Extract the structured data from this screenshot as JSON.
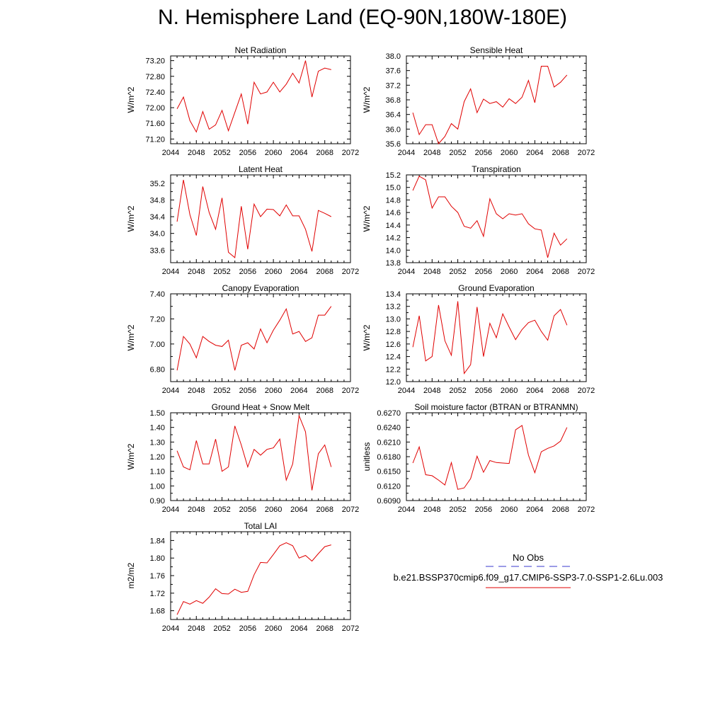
{
  "title": "N. Hemisphere Land (EQ-90N,180W-180E)",
  "legend": {
    "obs_label": "No Obs",
    "obs_color": "#3a3acc",
    "run_label": "b.e21.BSSP370cmip6.f09_g17.CMIP6-SSP3-7.0-SSP1-2.6Lu.003",
    "run_color": "#e00000"
  },
  "chart_data": [
    {
      "type": "line",
      "title": "Net Radiation",
      "ylabel": "W/m^2",
      "xlim": [
        2044,
        2072
      ],
      "xticks": [
        "2044",
        "2048",
        "2052",
        "2056",
        "2060",
        "2064",
        "2068",
        "2072"
      ],
      "ylim": [
        71.08,
        73.32
      ],
      "yticks": [
        "71.20",
        "71.60",
        "72.00",
        "72.40",
        "72.80",
        "73.20"
      ],
      "series": [
        {
          "color": "#e00000",
          "x": [
            2045,
            2046,
            2047,
            2048,
            2049,
            2050,
            2051,
            2052,
            2053,
            2054,
            2055,
            2056,
            2057,
            2058,
            2059,
            2060,
            2061,
            2062,
            2063,
            2064,
            2065,
            2066,
            2067,
            2068,
            2069
          ],
          "values": [
            71.97,
            72.27,
            71.67,
            71.38,
            71.9,
            71.45,
            71.56,
            71.93,
            71.41,
            71.88,
            72.35,
            71.58,
            72.65,
            72.35,
            72.4,
            72.65,
            72.4,
            72.6,
            72.88,
            72.63,
            73.2,
            72.27,
            72.93,
            73.01,
            72.97
          ]
        }
      ]
    },
    {
      "type": "line",
      "title": "Sensible Heat",
      "ylabel": "W/m^2",
      "xlim": [
        2044,
        2072
      ],
      "xticks": [
        "2044",
        "2048",
        "2052",
        "2056",
        "2060",
        "2064",
        "2068",
        "2072"
      ],
      "ylim": [
        35.6,
        38.0
      ],
      "yticks": [
        "35.6",
        "36.0",
        "36.4",
        "36.8",
        "37.2",
        "37.6",
        "38.0"
      ],
      "series": [
        {
          "color": "#e00000",
          "x": [
            2045,
            2046,
            2047,
            2048,
            2049,
            2050,
            2051,
            2052,
            2053,
            2054,
            2055,
            2056,
            2057,
            2058,
            2059,
            2060,
            2061,
            2062,
            2063,
            2064,
            2065,
            2066,
            2067,
            2068,
            2069
          ],
          "values": [
            36.45,
            35.85,
            36.12,
            36.12,
            35.6,
            35.8,
            36.15,
            36.0,
            36.75,
            37.1,
            36.45,
            36.82,
            36.7,
            36.75,
            36.6,
            36.83,
            36.7,
            36.87,
            37.33,
            36.72,
            37.72,
            37.72,
            37.15,
            37.28,
            37.48
          ]
        }
      ]
    },
    {
      "type": "line",
      "title": "Latent Heat",
      "ylabel": "W/m^2",
      "xlim": [
        2044,
        2072
      ],
      "xticks": [
        "2044",
        "2048",
        "2052",
        "2056",
        "2060",
        "2064",
        "2068",
        "2072"
      ],
      "ylim": [
        33.3,
        35.4
      ],
      "yticks": [
        "33.6",
        "34.0",
        "34.4",
        "34.8",
        "35.2"
      ],
      "series": [
        {
          "color": "#e00000",
          "x": [
            2045,
            2046,
            2047,
            2048,
            2049,
            2050,
            2051,
            2052,
            2053,
            2054,
            2055,
            2056,
            2057,
            2058,
            2059,
            2060,
            2061,
            2062,
            2063,
            2064,
            2065,
            2066,
            2067,
            2068,
            2069
          ],
          "values": [
            34.28,
            35.28,
            34.45,
            33.95,
            35.12,
            34.5,
            34.1,
            34.85,
            33.55,
            33.42,
            34.65,
            33.62,
            34.7,
            34.4,
            34.58,
            34.57,
            34.42,
            34.68,
            34.42,
            34.42,
            34.1,
            33.57,
            34.55,
            34.48,
            34.4
          ]
        }
      ]
    },
    {
      "type": "line",
      "title": "Transpiration",
      "ylabel": "W/m^2",
      "xlim": [
        2044,
        2072
      ],
      "xticks": [
        "2044",
        "2048",
        "2052",
        "2056",
        "2060",
        "2064",
        "2068",
        "2072"
      ],
      "ylim": [
        13.8,
        15.2
      ],
      "yticks": [
        "13.8",
        "14.0",
        "14.2",
        "14.4",
        "14.6",
        "14.8",
        "15.0",
        "15.2"
      ],
      "series": [
        {
          "color": "#e00000",
          "x": [
            2045,
            2046,
            2047,
            2048,
            2049,
            2050,
            2051,
            2052,
            2053,
            2054,
            2055,
            2056,
            2057,
            2058,
            2059,
            2060,
            2061,
            2062,
            2063,
            2064,
            2065,
            2066,
            2067,
            2068,
            2069
          ],
          "values": [
            14.95,
            15.18,
            15.12,
            14.67,
            14.85,
            14.85,
            14.7,
            14.6,
            14.38,
            14.35,
            14.47,
            14.22,
            14.82,
            14.58,
            14.5,
            14.58,
            14.56,
            14.58,
            14.42,
            14.34,
            14.32,
            13.88,
            14.27,
            14.08,
            14.18
          ]
        }
      ]
    },
    {
      "type": "line",
      "title": "Canopy Evaporation",
      "ylabel": "W/m^2",
      "xlim": [
        2044,
        2072
      ],
      "xticks": [
        "2044",
        "2048",
        "2052",
        "2056",
        "2060",
        "2064",
        "2068",
        "2072"
      ],
      "ylim": [
        6.7,
        7.4
      ],
      "yticks": [
        "6.80",
        "7.00",
        "7.20",
        "7.40"
      ],
      "series": [
        {
          "color": "#e00000",
          "x": [
            2045,
            2046,
            2047,
            2048,
            2049,
            2050,
            2051,
            2052,
            2053,
            2054,
            2055,
            2056,
            2057,
            2058,
            2059,
            2060,
            2061,
            2062,
            2063,
            2064,
            2065,
            2066,
            2067,
            2068,
            2069
          ],
          "values": [
            6.79,
            7.06,
            7.0,
            6.89,
            7.06,
            7.02,
            6.99,
            6.98,
            7.03,
            6.79,
            6.99,
            7.01,
            6.96,
            7.12,
            7.01,
            7.11,
            7.19,
            7.28,
            7.08,
            7.1,
            7.02,
            7.05,
            7.23,
            7.23,
            7.3
          ]
        }
      ]
    },
    {
      "type": "line",
      "title": "Ground Evaporation",
      "ylabel": "W/m^2",
      "xlim": [
        2044,
        2072
      ],
      "xticks": [
        "2044",
        "2048",
        "2052",
        "2056",
        "2060",
        "2064",
        "2068",
        "2072"
      ],
      "ylim": [
        12.0,
        13.4
      ],
      "yticks": [
        "12.0",
        "12.2",
        "12.4",
        "12.6",
        "12.8",
        "13.0",
        "13.2",
        "13.4"
      ],
      "series": [
        {
          "color": "#e00000",
          "x": [
            2045,
            2046,
            2047,
            2048,
            2049,
            2050,
            2051,
            2052,
            2053,
            2054,
            2055,
            2056,
            2057,
            2058,
            2059,
            2060,
            2061,
            2062,
            2063,
            2064,
            2065,
            2066,
            2067,
            2068,
            2069
          ],
          "values": [
            12.55,
            13.05,
            12.33,
            12.4,
            13.22,
            12.65,
            12.42,
            13.28,
            12.13,
            12.27,
            13.19,
            12.4,
            12.93,
            12.7,
            13.08,
            12.87,
            12.67,
            12.83,
            12.94,
            12.98,
            12.8,
            12.66,
            13.05,
            13.15,
            12.9
          ]
        }
      ]
    },
    {
      "type": "line",
      "title": "Ground Heat + Snow Melt",
      "ylabel": "W/m^2",
      "xlim": [
        2044,
        2072
      ],
      "xticks": [
        "2044",
        "2048",
        "2052",
        "2056",
        "2060",
        "2064",
        "2068",
        "2072"
      ],
      "ylim": [
        0.9,
        1.5
      ],
      "yticks": [
        "0.90",
        "1.00",
        "1.10",
        "1.20",
        "1.30",
        "1.40",
        "1.50"
      ],
      "series": [
        {
          "color": "#e00000",
          "x": [
            2045,
            2046,
            2047,
            2048,
            2049,
            2050,
            2051,
            2052,
            2053,
            2054,
            2055,
            2056,
            2057,
            2058,
            2059,
            2060,
            2061,
            2062,
            2063,
            2064,
            2065,
            2066,
            2067,
            2068,
            2069
          ],
          "values": [
            1.24,
            1.13,
            1.11,
            1.31,
            1.15,
            1.15,
            1.32,
            1.1,
            1.13,
            1.41,
            1.28,
            1.13,
            1.25,
            1.21,
            1.25,
            1.26,
            1.32,
            1.04,
            1.15,
            1.48,
            1.37,
            0.97,
            1.22,
            1.28,
            1.13
          ]
        }
      ]
    },
    {
      "type": "line",
      "title": "Soil moisture factor (BTRAN or BTRANMN)",
      "ylabel": "unitless",
      "xlim": [
        2044,
        2072
      ],
      "xticks": [
        "2044",
        "2048",
        "2052",
        "2056",
        "2060",
        "2064",
        "2068",
        "2072"
      ],
      "ylim": [
        0.609,
        0.627
      ],
      "yticks": [
        "0.6090",
        "0.6120",
        "0.6150",
        "0.6180",
        "0.6210",
        "0.6240",
        "0.6270"
      ],
      "series": [
        {
          "color": "#e00000",
          "x": [
            2045,
            2046,
            2047,
            2048,
            2049,
            2050,
            2051,
            2052,
            2053,
            2054,
            2055,
            2056,
            2057,
            2058,
            2059,
            2060,
            2061,
            2062,
            2063,
            2064,
            2065,
            2066,
            2067,
            2068,
            2069
          ],
          "values": [
            0.6167,
            0.62,
            0.6143,
            0.6141,
            0.6132,
            0.6122,
            0.6168,
            0.6113,
            0.6116,
            0.6135,
            0.6181,
            0.6148,
            0.6172,
            0.6168,
            0.6167,
            0.6166,
            0.6235,
            0.6244,
            0.6183,
            0.6147,
            0.619,
            0.6197,
            0.6202,
            0.6212,
            0.624
          ]
        }
      ]
    },
    {
      "type": "line",
      "title": "Total LAI",
      "ylabel": "m2/m2",
      "xlim": [
        2044,
        2072
      ],
      "xticks": [
        "2044",
        "2048",
        "2052",
        "2056",
        "2060",
        "2064",
        "2068",
        "2072"
      ],
      "ylim": [
        1.66,
        1.86
      ],
      "yticks": [
        "1.68",
        "1.72",
        "1.76",
        "1.80",
        "1.84"
      ],
      "series": [
        {
          "color": "#e00000",
          "x": [
            2045,
            2046,
            2047,
            2048,
            2049,
            2050,
            2051,
            2052,
            2053,
            2054,
            2055,
            2056,
            2057,
            2058,
            2059,
            2060,
            2061,
            2062,
            2063,
            2064,
            2065,
            2066,
            2067,
            2068,
            2069
          ],
          "values": [
            1.671,
            1.701,
            1.695,
            1.703,
            1.697,
            1.711,
            1.73,
            1.719,
            1.718,
            1.729,
            1.722,
            1.724,
            1.762,
            1.79,
            1.789,
            1.808,
            1.828,
            1.835,
            1.828,
            1.8,
            1.806,
            1.793,
            1.81,
            1.826,
            1.83
          ]
        }
      ]
    }
  ]
}
